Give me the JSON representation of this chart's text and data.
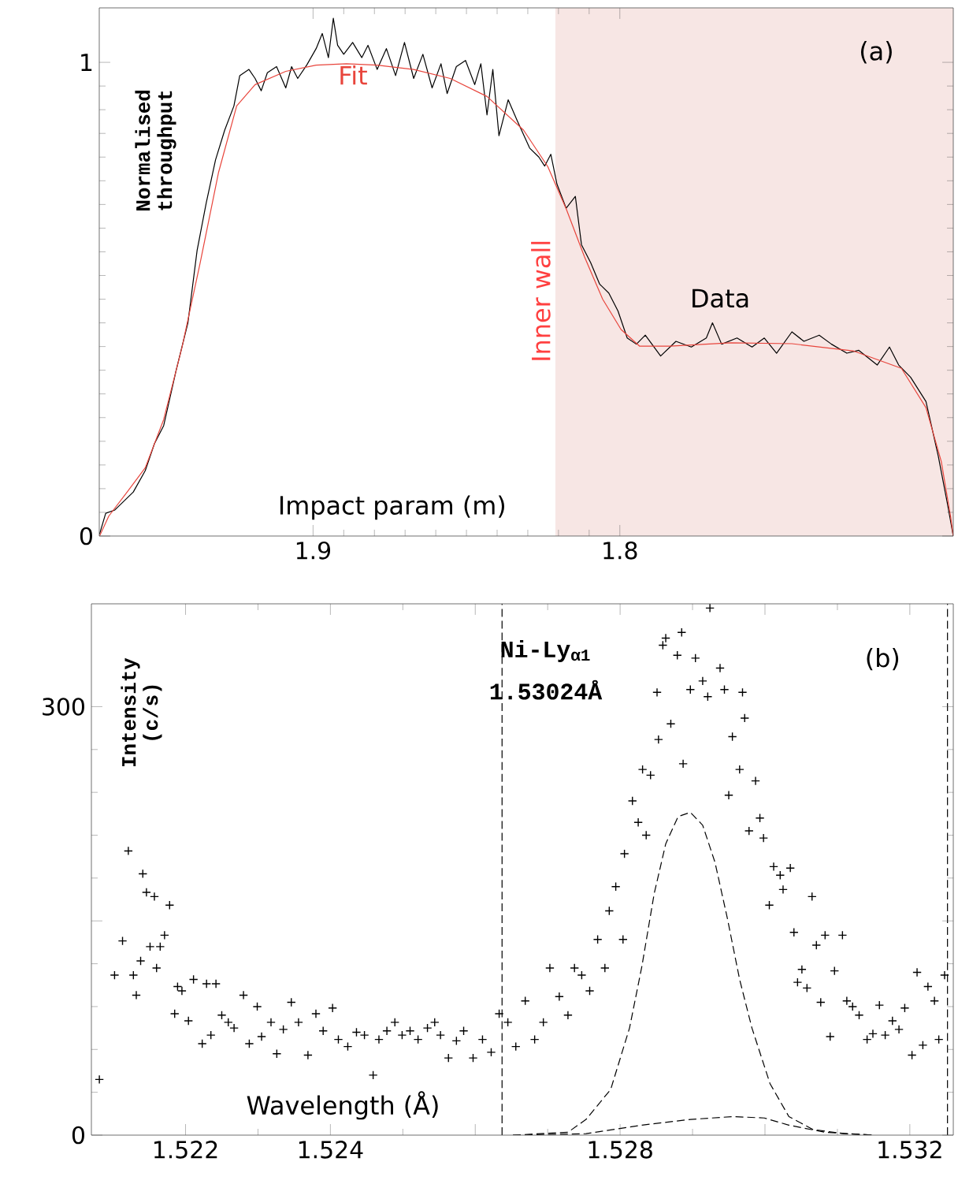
{
  "chart_data": [
    {
      "type": "line",
      "annotations": [
        "(a)"
      ],
      "xlabel": "Impact param (m)",
      "ylabel": "Normalised throughput",
      "xlim": [
        1.9697,
        1.6913
      ],
      "ylim": [
        0,
        1.115
      ],
      "xticks": [
        1.9,
        1.8
      ],
      "yticks": [
        0,
        1
      ],
      "bands": [
        {
          "axis": "x",
          "from": 1.821,
          "to": 1.6913,
          "label": "Inner wall",
          "color": "#f7e6e4"
        }
      ],
      "series": [
        {
          "name": "Data",
          "color": "#000000",
          "x": [
            1.9696,
            1.9676,
            1.9646,
            1.9616,
            1.9586,
            1.9547,
            1.9517,
            1.9487,
            1.9447,
            1.9408,
            1.9378,
            1.9348,
            1.9318,
            1.9288,
            1.9258,
            1.9239,
            1.9209,
            1.9189,
            1.9169,
            1.9149,
            1.9119,
            1.9089,
            1.907,
            1.905,
            1.902,
            1.899,
            1.897,
            1.895,
            1.8934,
            1.892,
            1.89,
            1.8871,
            1.8841,
            1.8821,
            1.8791,
            1.8761,
            1.8731,
            1.8702,
            1.8672,
            1.8642,
            1.8612,
            1.8583,
            1.8563,
            1.8533,
            1.8503,
            1.8473,
            1.8453,
            1.8433,
            1.8414,
            1.8394,
            1.8364,
            1.8334,
            1.8294,
            1.8264,
            1.8245,
            1.8225,
            1.8205,
            1.8175,
            1.8145,
            1.8125,
            1.8095,
            1.8066,
            1.8036,
            1.8006,
            1.7976,
            1.7946,
            1.7917,
            1.7867,
            1.7817,
            1.7767,
            1.7718,
            1.7698,
            1.7668,
            1.7618,
            1.7569,
            1.7529,
            1.7489,
            1.7439,
            1.74,
            1.735,
            1.731,
            1.726,
            1.7221,
            1.7161,
            1.7121,
            1.7091,
            1.7052,
            1.7002,
            1.6962,
            1.6932,
            1.6913
          ],
          "values": [
            0.004,
            0.048,
            0.055,
            0.074,
            0.093,
            0.138,
            0.195,
            0.233,
            0.348,
            0.45,
            0.603,
            0.704,
            0.794,
            0.857,
            0.908,
            0.972,
            0.985,
            0.966,
            0.94,
            0.978,
            0.991,
            0.946,
            0.991,
            0.966,
            0.995,
            1.029,
            1.061,
            1.01,
            1.093,
            1.036,
            1.017,
            1.042,
            1.01,
            1.036,
            0.985,
            1.029,
            0.972,
            1.042,
            0.966,
            1.017,
            0.946,
            0.997,
            0.934,
            0.991,
            1.004,
            0.953,
            0.997,
            0.889,
            0.985,
            0.845,
            0.921,
            0.876,
            0.819,
            0.8,
            0.781,
            0.806,
            0.743,
            0.692,
            0.717,
            0.615,
            0.577,
            0.532,
            0.513,
            0.475,
            0.418,
            0.405,
            0.424,
            0.38,
            0.411,
            0.399,
            0.418,
            0.45,
            0.405,
            0.418,
            0.399,
            0.418,
            0.386,
            0.431,
            0.411,
            0.424,
            0.405,
            0.386,
            0.392,
            0.361,
            0.399,
            0.361,
            0.335,
            0.284,
            0.169,
            0.068,
            0
          ]
        },
        {
          "name": "Fit",
          "color": "#e8453c",
          "x": [
            1.9696,
            1.9666,
            1.9606,
            1.9547,
            1.9487,
            1.9427,
            1.9368,
            1.9308,
            1.9249,
            1.9189,
            1.9089,
            1.899,
            1.8891,
            1.8791,
            1.8672,
            1.8553,
            1.8433,
            1.8314,
            1.8235,
            1.8175,
            1.8115,
            1.8056,
            1.7996,
            1.7936,
            1.7837,
            1.7638,
            1.7439,
            1.724,
            1.7082,
            1.7002,
            1.6952,
            1.6922,
            1.6913
          ],
          "values": [
            0,
            0.042,
            0.093,
            0.144,
            0.246,
            0.399,
            0.577,
            0.768,
            0.908,
            0.953,
            0.981,
            0.994,
            0.997,
            0.994,
            0.985,
            0.966,
            0.928,
            0.857,
            0.78,
            0.691,
            0.589,
            0.5,
            0.436,
            0.401,
            0.401,
            0.408,
            0.406,
            0.391,
            0.354,
            0.271,
            0.157,
            0.042,
            0
          ]
        }
      ]
    },
    {
      "type": "scatter",
      "annotations": [
        "(b)",
        "Ni-Ly$_{α1}$",
        "1.53024Å"
      ],
      "xlabel": "Wavelength (Å)",
      "ylabel": "Intensity (c/s)",
      "xlim": [
        1.5207,
        1.5326
      ],
      "ylim": [
        0,
        372
      ],
      "xticks": [
        1.522,
        1.524,
        {
          "value": 1.526,
          "label": null
        },
        1.528,
        {
          "value": 1.53,
          "label": null
        },
        1.532
      ],
      "yticks": [
        0,
        {
          "value": 150,
          "label": null
        },
        300
      ],
      "ref_lines": [
        {
          "axis": "x",
          "value": 1.52637,
          "color": "#000000",
          "line_style": "dashed"
        },
        {
          "axis": "x",
          "value": 1.53252,
          "color": "#000000",
          "line_style": "dashed"
        }
      ],
      "series": [
        {
          "color": "#000000",
          "marker": "cross",
          "x": [
            1.52081,
            1.52102,
            1.52113,
            1.52121,
            1.52128,
            1.52132,
            1.52138,
            1.52141,
            1.52146,
            1.52151,
            1.52157,
            1.5216,
            1.52165,
            1.52171,
            1.52178,
            1.52185,
            1.52189,
            1.52195,
            1.52204,
            1.52211,
            1.52223,
            1.52229,
            1.52235,
            1.52242,
            1.5225,
            1.52259,
            1.52267,
            1.5228,
            1.52288,
            1.52299,
            1.52305,
            1.52318,
            1.52326,
            1.52335,
            1.52346,
            1.52356,
            1.52369,
            1.5238,
            1.5239,
            1.52403,
            1.52411,
            1.52424,
            1.52436,
            1.52447,
            1.52459,
            1.52467,
            1.52478,
            1.52489,
            1.52499,
            1.5251,
            1.52521,
            1.52534,
            1.52544,
            1.52552,
            1.52563,
            1.52574,
            1.52584,
            1.52597,
            1.5261,
            1.52622,
            1.52633,
            1.52645,
            1.52656,
            1.52669,
            1.52682,
            1.52694,
            1.52703,
            1.52716,
            1.52728,
            1.52737,
            1.52747,
            1.52758,
            1.52769,
            1.52779,
            1.52785,
            1.52794,
            1.52804,
            1.52806,
            1.52817,
            1.52825,
            1.52831,
            1.52836,
            1.52842,
            1.52851,
            1.52853,
            1.52859,
            1.52863,
            1.5287,
            1.52879,
            1.52885,
            1.52887,
            1.52897,
            1.52904,
            1.52914,
            1.52921,
            1.52924,
            1.52938,
            1.52944,
            1.5295,
            1.52955,
            1.52965,
            1.52969,
            1.52972,
            1.52978,
            1.52987,
            1.52993,
            1.52998,
            1.53006,
            1.53012,
            1.53021,
            1.53025,
            1.53035,
            1.5304,
            1.53045,
            1.53051,
            1.53058,
            1.53065,
            1.53071,
            1.53077,
            1.53083,
            1.5309,
            1.53096,
            1.53107,
            1.53113,
            1.53121,
            1.5313,
            1.53141,
            1.53149,
            1.53158,
            1.53166,
            1.53176,
            1.53185,
            1.53193,
            1.53203,
            1.5321,
            1.53218,
            1.53225,
            1.53234,
            1.5324,
            1.53248
          ],
          "values": [
            39,
            112,
            136,
            199,
            112,
            98,
            122,
            183,
            170,
            132,
            167,
            117,
            132,
            140,
            161,
            85,
            104,
            101,
            80,
            109,
            64,
            106,
            70,
            106,
            84,
            79,
            75,
            98,
            64,
            90,
            69,
            79,
            57,
            74,
            93,
            79,
            56,
            85,
            73,
            89,
            67,
            62,
            72,
            70,
            42,
            67,
            73,
            79,
            70,
            73,
            67,
            75,
            79,
            70,
            54,
            66,
            73,
            54,
            67,
            58,
            85,
            79,
            62,
            94,
            67,
            79,
            117,
            97,
            84,
            117,
            112,
            101,
            137,
            117,
            157,
            174,
            137,
            197,
            234,
            219,
            256,
            210,
            252,
            310,
            277,
            343,
            348,
            288,
            336,
            352,
            260,
            312,
            334,
            318,
            307,
            369,
            327,
            312,
            238,
            279,
            256,
            310,
            292,
            213,
            248,
            222,
            208,
            161,
            188,
            182,
            172,
            187,
            142,
            107,
            116,
            103,
            167,
            133,
            93,
            140,
            69,
            115,
            140,
            94,
            90,
            84,
            67,
            71,
            91,
            70,
            80,
            74,
            89,
            56,
            114,
            63,
            104,
            94,
            67,
            112
          ]
        },
        {
          "type": "line",
          "color": "#000000",
          "line_style": "dashed",
          "x": [
            1.52652,
            1.52728,
            1.52753,
            1.52787,
            1.52813,
            1.5283,
            1.52847,
            1.52863,
            1.5288,
            1.52897,
            1.52914,
            1.52931,
            1.52948,
            1.52965,
            1.52982,
            1.53007,
            1.53033,
            1.53066,
            1.53109,
            1.53151
          ],
          "values": [
            0,
            2,
            11,
            32,
            75,
            118,
            169,
            204,
            223,
            226,
            217,
            191,
            152,
            109,
            75,
            36,
            13,
            4,
            1,
            0
          ]
        },
        {
          "type": "line",
          "color": "#000000",
          "line_style": "dashed",
          "x": [
            1.52652,
            1.52753,
            1.5283,
            1.52897,
            1.52956,
            1.52999,
            1.53033,
            1.53083,
            1.53151
          ],
          "values": [
            0,
            1,
            7,
            11,
            13,
            12,
            7,
            2,
            0
          ]
        }
      ]
    }
  ]
}
